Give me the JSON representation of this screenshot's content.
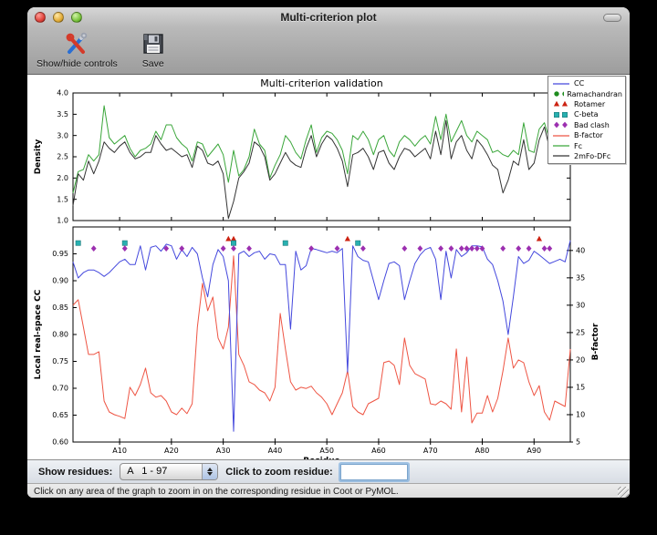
{
  "window": {
    "title": "Multi-criterion plot"
  },
  "toolbar": {
    "show_hide_label": "Show/hide controls",
    "save_label": "Save"
  },
  "controls": {
    "show_residues_label": "Show residues:",
    "chain_range_value": "A   1 - 97",
    "zoom_residue_label": "Click to zoom residue:",
    "zoom_input_value": ""
  },
  "status": {
    "message": "Click on any area of the graph to zoom in on the corresponding residue in Coot or PyMOL."
  },
  "chart_data": {
    "type": "line",
    "title": "Multi-criterion validation",
    "xlabel": "Residue",
    "xlim": [
      1,
      97
    ],
    "x_ticks": [
      {
        "residue": 10,
        "label": "A10"
      },
      {
        "residue": 20,
        "label": "A20"
      },
      {
        "residue": 30,
        "label": "A30"
      },
      {
        "residue": 40,
        "label": "A40"
      },
      {
        "residue": 50,
        "label": "A50"
      },
      {
        "residue": 60,
        "label": "A60"
      },
      {
        "residue": 70,
        "label": "A70"
      },
      {
        "residue": 80,
        "label": "A80"
      },
      {
        "residue": 90,
        "label": "A90"
      }
    ],
    "top_plot": {
      "ylabel": "Density",
      "ylim": [
        1.0,
        4.0
      ],
      "yticks": [
        1.0,
        1.5,
        2.0,
        2.5,
        3.0,
        3.5,
        4.0
      ],
      "series": [
        {
          "name": "Fc",
          "color": "#3aa63a",
          "values": [
            1.65,
            2.15,
            2.2,
            2.55,
            2.4,
            2.55,
            3.7,
            2.95,
            2.8,
            2.9,
            3.0,
            2.7,
            2.5,
            2.65,
            2.7,
            2.8,
            3.1,
            2.9,
            3.25,
            3.25,
            2.95,
            2.8,
            2.7,
            2.4,
            2.85,
            2.8,
            2.5,
            2.65,
            2.8,
            2.55,
            1.9,
            2.65,
            2.05,
            2.2,
            2.5,
            3.15,
            2.8,
            2.65,
            2.0,
            2.3,
            2.55,
            3.0,
            2.85,
            2.6,
            2.45,
            2.9,
            3.25,
            2.6,
            2.95,
            3.1,
            3.05,
            2.9,
            2.65,
            2.1,
            3.0,
            2.9,
            3.1,
            2.9,
            2.55,
            2.9,
            3.0,
            2.65,
            2.5,
            2.85,
            3.0,
            2.9,
            2.75,
            2.9,
            3.0,
            2.8,
            3.45,
            2.9,
            3.5,
            2.85,
            3.1,
            3.35,
            3.0,
            2.85,
            3.1,
            3.0,
            2.9,
            2.6,
            2.65,
            2.55,
            2.5,
            2.65,
            2.55,
            3.3,
            2.65,
            2.6,
            3.15,
            3.3,
            2.9,
            2.7,
            2.9,
            3.0,
            3.15
          ]
        },
        {
          "name": "2mFo-DFc",
          "color": "#333333",
          "values": [
            1.35,
            2.1,
            1.95,
            2.4,
            2.1,
            2.4,
            2.85,
            2.7,
            2.6,
            2.75,
            2.85,
            2.6,
            2.45,
            2.5,
            2.6,
            2.6,
            3.0,
            2.8,
            2.65,
            2.7,
            2.6,
            2.5,
            2.55,
            2.25,
            2.75,
            2.65,
            2.35,
            2.3,
            2.4,
            2.1,
            1.05,
            1.45,
            2.0,
            2.15,
            2.35,
            2.85,
            2.75,
            2.5,
            1.95,
            2.1,
            2.35,
            2.6,
            2.4,
            2.3,
            2.25,
            2.7,
            3.0,
            2.5,
            2.8,
            3.0,
            2.9,
            2.7,
            2.4,
            1.8,
            2.55,
            2.6,
            2.7,
            2.5,
            2.2,
            2.6,
            2.65,
            2.35,
            2.2,
            2.5,
            2.7,
            2.65,
            2.5,
            2.6,
            2.7,
            2.45,
            3.1,
            2.55,
            3.35,
            2.45,
            2.85,
            3.0,
            2.65,
            2.45,
            2.9,
            2.75,
            2.55,
            2.3,
            2.2,
            1.65,
            1.95,
            2.4,
            2.3,
            2.9,
            2.2,
            2.35,
            2.9,
            3.2,
            2.7,
            2.55,
            2.6,
            2.8,
            3.1
          ]
        }
      ]
    },
    "bottom_plot": {
      "ylabel_left": "Local real-space CC",
      "ylim_left": [
        0.6,
        1.0
      ],
      "yticks_left": [
        0.6,
        0.65,
        0.7,
        0.75,
        0.8,
        0.85,
        0.9,
        0.95
      ],
      "ylabel_right": "B-factor",
      "ylim_right": [
        5,
        44.3
      ],
      "yticks_right": [
        5,
        10,
        15,
        20,
        25,
        30,
        35,
        40
      ],
      "series": [
        {
          "name": "CC",
          "axis": "left",
          "color": "#4448dd",
          "values": [
            0.935,
            0.905,
            0.915,
            0.92,
            0.92,
            0.915,
            0.908,
            0.915,
            0.925,
            0.935,
            0.94,
            0.93,
            0.93,
            0.965,
            0.92,
            0.962,
            0.965,
            0.955,
            0.968,
            0.965,
            0.94,
            0.958,
            0.945,
            0.962,
            0.95,
            0.905,
            0.87,
            0.93,
            0.958,
            0.945,
            0.9,
            0.62,
            0.95,
            0.955,
            0.945,
            0.952,
            0.955,
            0.94,
            0.95,
            0.948,
            0.93,
            0.93,
            0.81,
            0.955,
            0.92,
            0.928,
            0.96,
            0.958,
            0.955,
            0.952,
            0.955,
            0.952,
            0.96,
            0.73,
            0.965,
            0.945,
            0.938,
            0.935,
            0.9,
            0.865,
            0.9,
            0.932,
            0.935,
            0.928,
            0.865,
            0.9,
            0.932,
            0.948,
            0.958,
            0.962,
            0.94,
            0.865,
            0.955,
            0.905,
            0.958,
            0.945,
            0.952,
            0.965,
            0.965,
            0.963,
            0.94,
            0.93,
            0.9,
            0.862,
            0.8,
            0.87,
            0.945,
            0.932,
            0.938,
            0.955,
            0.948,
            0.94,
            0.932,
            0.936,
            0.94,
            0.935,
            0.975
          ]
        },
        {
          "name": "B-factor",
          "axis": "right",
          "color": "#ee5544",
          "values": [
            30,
            31,
            26,
            21,
            21,
            21.5,
            12.5,
            10.5,
            10,
            9.7,
            9.3,
            15,
            13.5,
            15.5,
            18.5,
            14,
            13.2,
            13.5,
            12.5,
            10.5,
            10,
            11.2,
            10.2,
            12,
            26,
            34,
            29,
            31.5,
            24,
            22,
            26,
            39,
            21,
            19,
            16,
            15.5,
            14.5,
            14,
            12.5,
            15,
            28.5,
            22,
            16,
            14.5,
            15,
            14.8,
            15.2,
            14,
            13.2,
            12,
            10,
            12,
            14,
            18,
            11.5,
            10.5,
            10,
            12,
            12.5,
            13,
            19.5,
            19.8,
            19,
            15.5,
            24,
            19,
            17.5,
            17,
            16.5,
            12,
            11.8,
            12.5,
            12,
            11,
            22,
            10.5,
            20.5,
            8.5,
            10.3,
            10.3,
            13.5,
            10.5,
            13,
            18,
            24,
            18.5,
            20,
            19.5,
            16,
            13.5,
            15.3,
            10.5,
            9,
            12.5,
            12,
            11.5,
            22
          ]
        }
      ],
      "markers": [
        {
          "name": "Ramachandran",
          "shape": "circle",
          "color": "#1e8c1e",
          "y_cc": 0.985,
          "residues": []
        },
        {
          "name": "Rotamer",
          "shape": "triangle",
          "color": "#cc2211",
          "y_cc": 0.978,
          "residues": [
            31,
            32,
            54,
            91
          ]
        },
        {
          "name": "C-beta",
          "shape": "square",
          "color": "#29b0b0",
          "y_cc": 0.97,
          "residues": [
            2,
            11,
            32,
            42,
            56
          ]
        },
        {
          "name": "Bad clash",
          "shape": "diamond",
          "color": "#9c2fb0",
          "y_cc": 0.96,
          "residues": [
            5,
            11,
            19,
            22,
            30,
            32,
            35,
            47,
            52,
            57,
            65,
            68,
            72,
            74,
            76,
            77,
            78,
            79,
            80,
            84,
            87,
            89,
            92,
            93
          ]
        }
      ]
    },
    "legend": {
      "position": "upper right",
      "entries": [
        {
          "label": "CC",
          "type": "line",
          "color": "#4448dd"
        },
        {
          "label": "Ramachandran",
          "type": "circle",
          "color": "#1e8c1e"
        },
        {
          "label": "Rotamer",
          "type": "triangle",
          "color": "#cc2211"
        },
        {
          "label": "C-beta",
          "type": "square",
          "color": "#29b0b0"
        },
        {
          "label": "Bad clash",
          "type": "diamond",
          "color": "#9c2fb0"
        },
        {
          "label": "B-factor",
          "type": "line",
          "color": "#ee5544"
        },
        {
          "label": "Fc",
          "type": "line",
          "color": "#3aa63a"
        },
        {
          "label": "2mFo-DFc",
          "type": "line",
          "color": "#333333"
        }
      ]
    }
  }
}
